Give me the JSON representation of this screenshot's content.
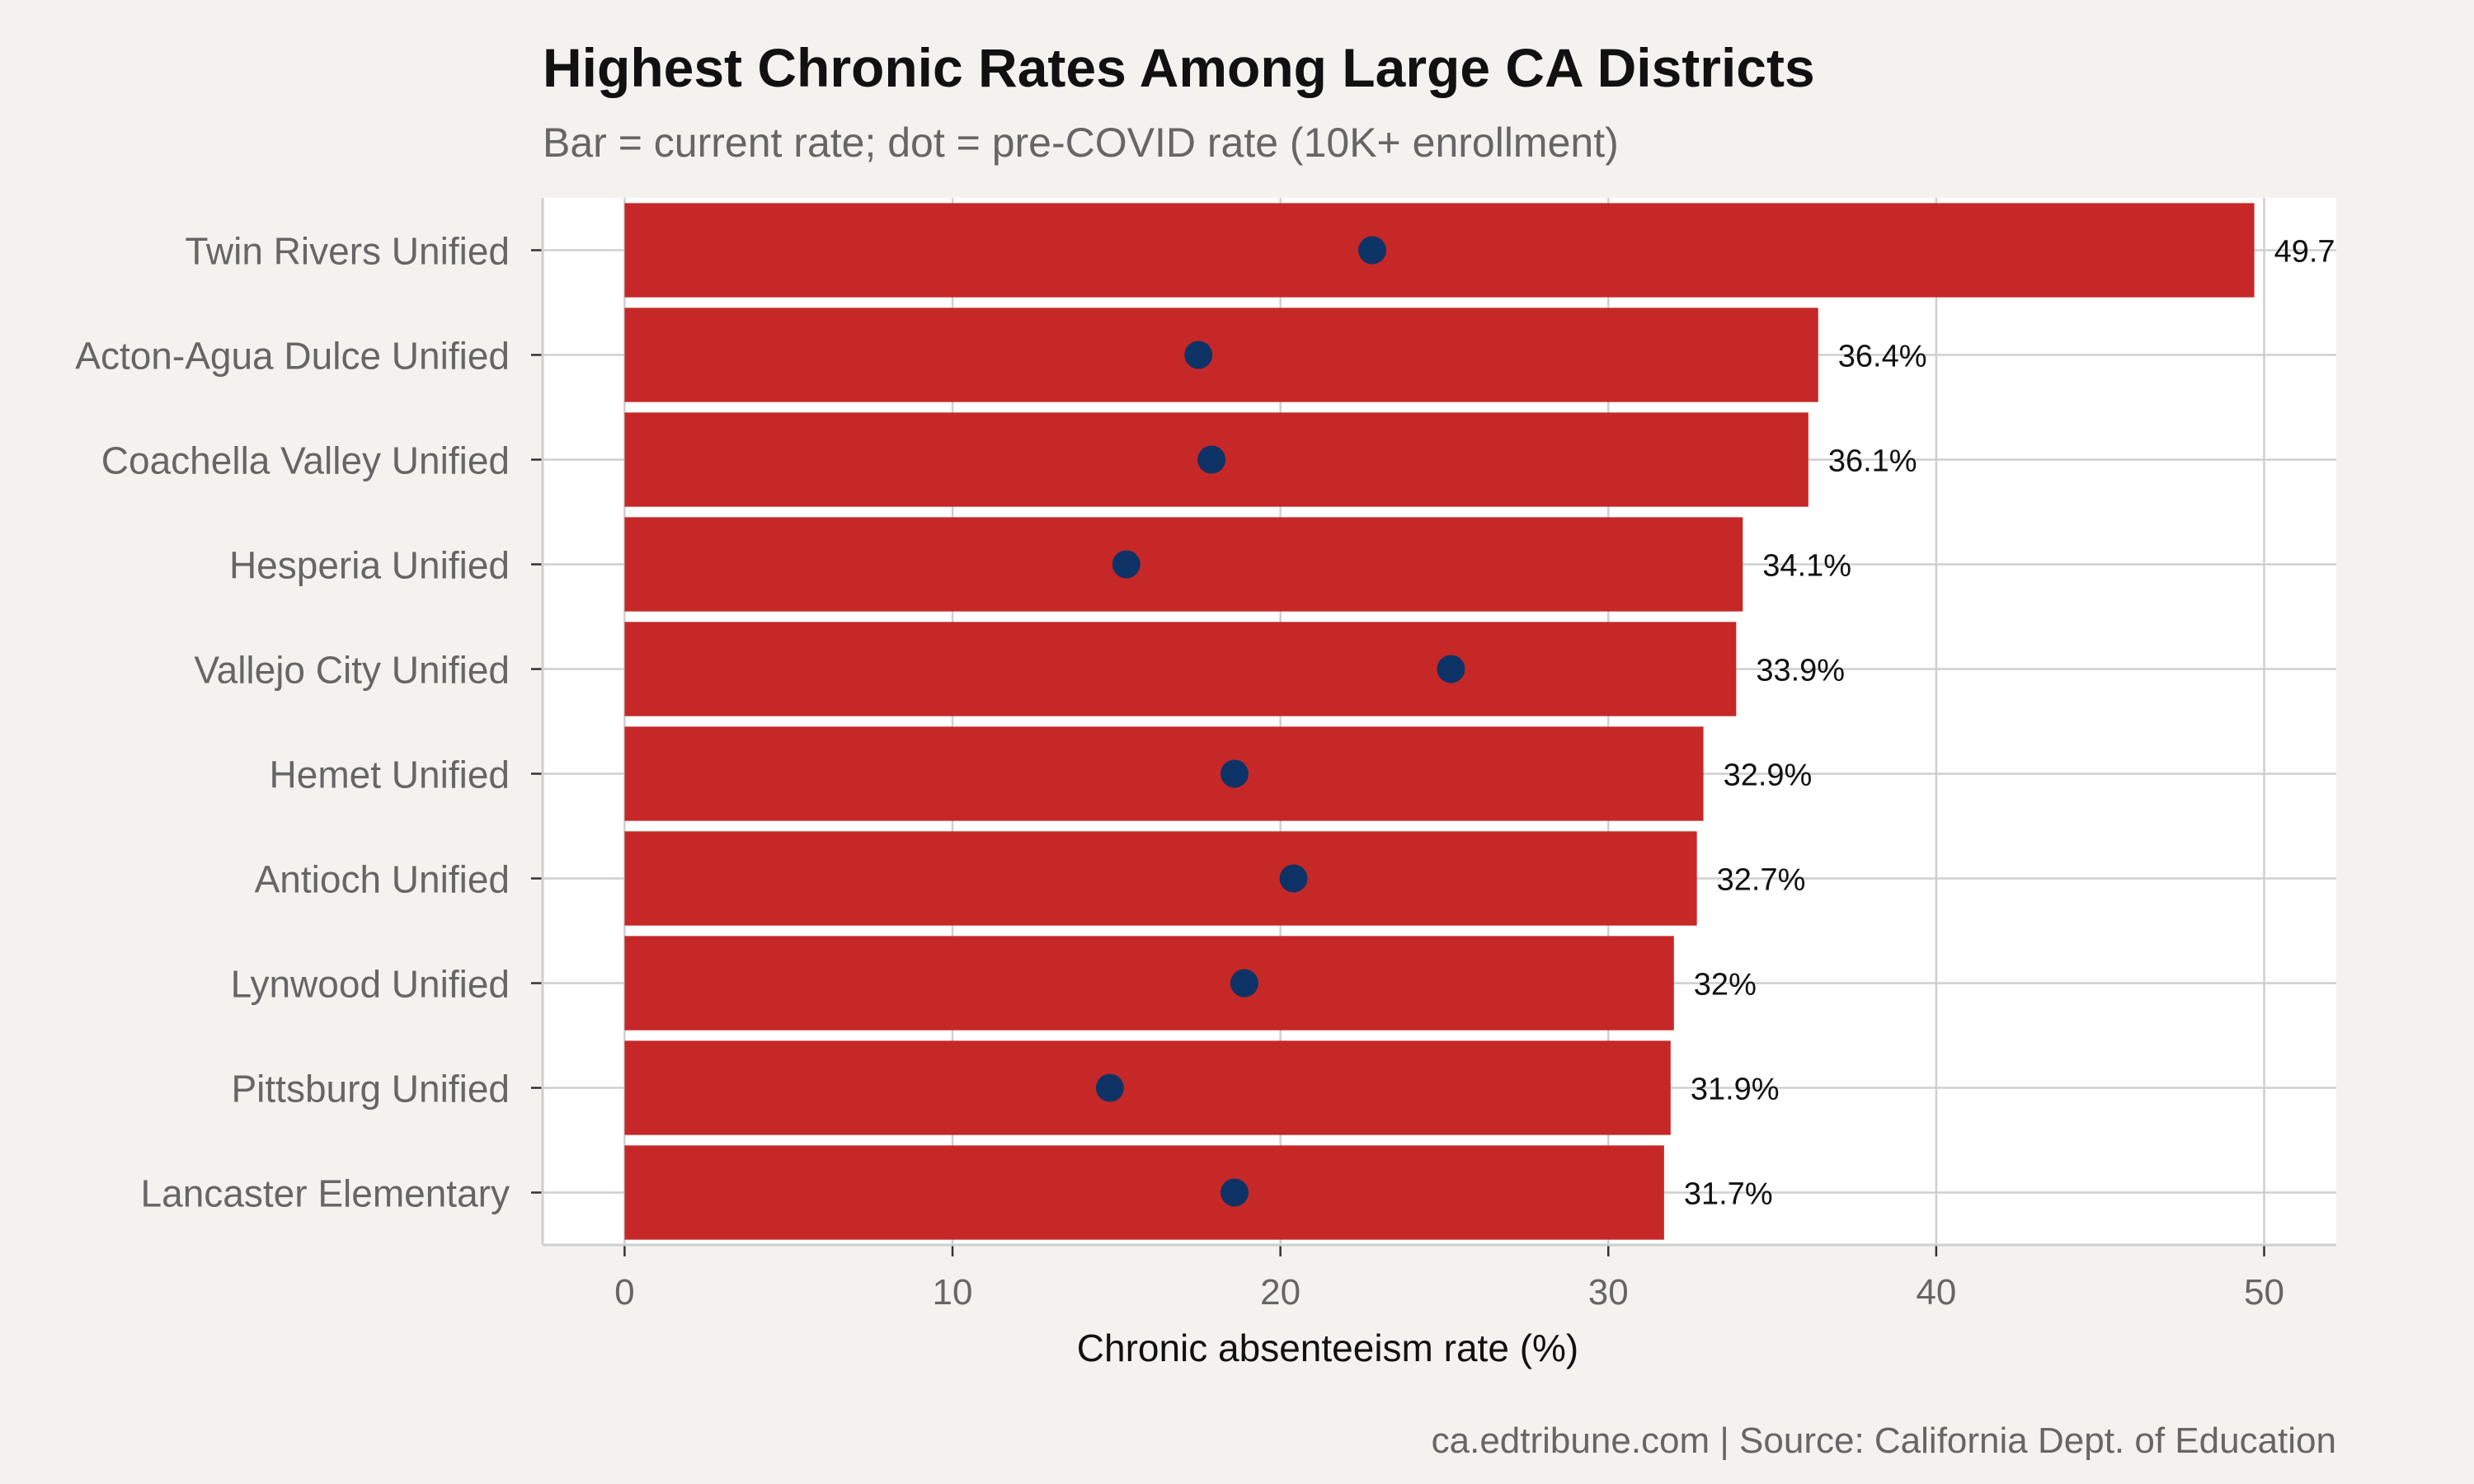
{
  "chart_data": {
    "type": "bar",
    "orientation": "horizontal",
    "title": "Highest Chronic Rates Among Large CA Districts",
    "subtitle": "Bar = current rate; dot = pre-COVID rate (10K+ enrollment)",
    "xlabel": "Chronic absenteeism rate (%)",
    "ylabel": "",
    "caption": "ca.edtribune.com | Source: California Dept. of Education",
    "xlim": [
      -2.5,
      52.2
    ],
    "x_ticks": [
      0,
      10,
      20,
      30,
      40,
      50
    ],
    "x_tick_labels": [
      "0",
      "10",
      "20",
      "30",
      "40",
      "50"
    ],
    "categories": [
      "Twin Rivers Unified",
      "Acton-Agua Dulce Unified",
      "Coachella Valley Unified",
      "Hesperia Unified",
      "Vallejo City Unified",
      "Hemet Unified",
      "Antioch Unified",
      "Lynwood Unified",
      "Pittsburg Unified",
      "Lancaster Elementary"
    ],
    "series": [
      {
        "role": "bar",
        "values": [
          49.7,
          36.4,
          36.1,
          34.1,
          33.9,
          32.9,
          32.7,
          32.0,
          31.9,
          31.7
        ]
      },
      {
        "role": "dot",
        "values": [
          22.8,
          17.5,
          17.9,
          15.3,
          25.2,
          18.6,
          20.4,
          18.9,
          14.8,
          18.6
        ]
      }
    ],
    "data_labels": [
      "49.7",
      "36.4%",
      "36.1%",
      "34.1%",
      "33.9%",
      "32.9%",
      "32.7%",
      "32%",
      "31.9%",
      "31.7%"
    ],
    "grid": true,
    "legend": "none",
    "colors": {
      "bar": "#c62828",
      "dot": "#0d3366",
      "panel": "#ffffff",
      "background": "#f4f2ee",
      "grid": "#cfcfcf"
    }
  }
}
